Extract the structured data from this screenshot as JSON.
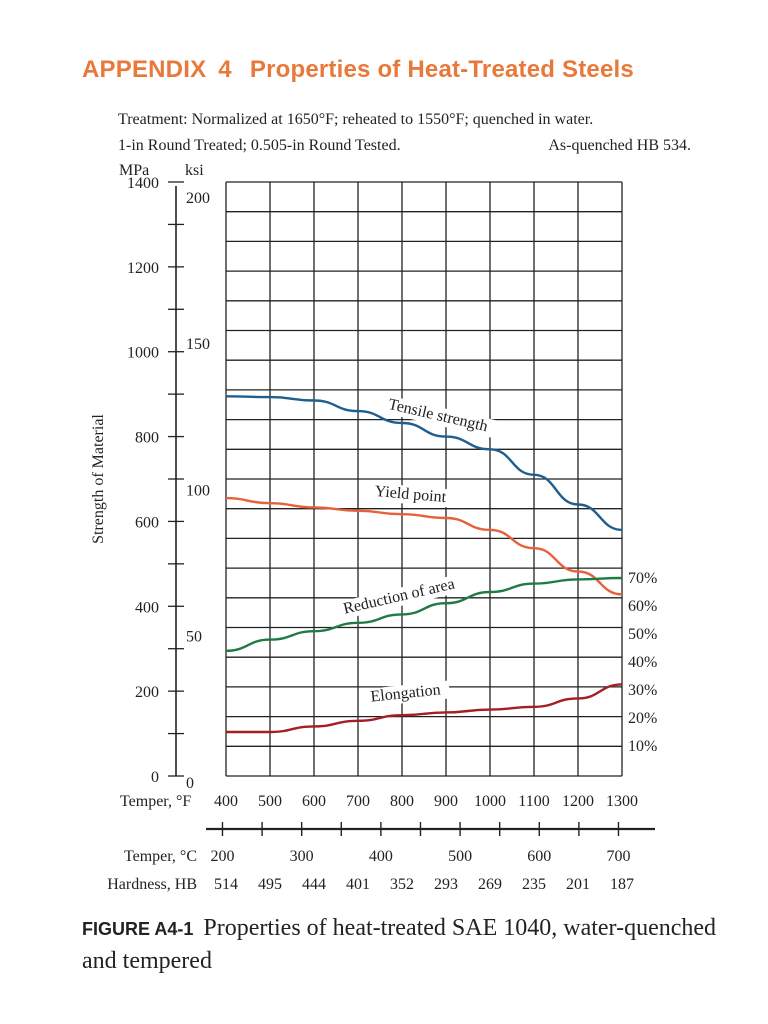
{
  "heading": {
    "label": "APPENDIX",
    "number": "4",
    "title": "Properties of Heat-Treated Steels"
  },
  "caption": {
    "label": "FIGURE A4-1",
    "text": "Properties of heat-treated SAE 1040, water-quenched and tempered"
  },
  "chart_data": {
    "type": "line",
    "notes": [
      "Treatment: Normalized at 1650°F; reheated to 1550°F; quenched in water.",
      "1-in Round Treated; 0.505-in Round Tested.",
      "As-quenched HB 534."
    ],
    "ylabel": "Strength of Material",
    "y_units": [
      "MPa",
      "ksi"
    ],
    "ylim_mpa": [
      0,
      1400
    ],
    "y_ticks_mpa": [
      "0",
      "200",
      "400",
      "600",
      "800",
      "1000",
      "1200",
      "1400"
    ],
    "y_ticks_ksi": [
      "0",
      "50",
      "100",
      "150",
      "200"
    ],
    "right_ticks_percent": [
      "10%",
      "20%",
      "30%",
      "40%",
      "50%",
      "60%",
      "70%"
    ],
    "x_title": "Temper, °F",
    "x_ticks_f": [
      "400",
      "500",
      "600",
      "700",
      "800",
      "900",
      "1000",
      "1100",
      "1200",
      "1300"
    ],
    "xlim_f": [
      400,
      1300
    ],
    "temper_c_title": "Temper, °C",
    "temper_c_ticks": [
      "200",
      "300",
      "400",
      "500",
      "600",
      "700"
    ],
    "hardness_title": "Hardness, HB",
    "hardness_values": [
      "514",
      "495",
      "444",
      "401",
      "352",
      "293",
      "269",
      "235",
      "201",
      "187"
    ],
    "grid": true,
    "series": [
      {
        "name": "Tensile strength",
        "axis": "MPa",
        "color": "#1f5f8f",
        "x": [
          400,
          500,
          600,
          700,
          800,
          900,
          1000,
          1100,
          1200,
          1300
        ],
        "y": [
          895,
          893,
          885,
          860,
          832,
          800,
          770,
          710,
          640,
          580
        ]
      },
      {
        "name": "Yield point",
        "axis": "MPa",
        "color": "#e8603a",
        "x": [
          400,
          500,
          600,
          700,
          800,
          900,
          1000,
          1100,
          1200,
          1300
        ],
        "y": [
          655,
          643,
          633,
          625,
          617,
          608,
          580,
          537,
          482,
          428
        ]
      },
      {
        "name": "Reduction of area",
        "axis": "percent",
        "color": "#1f7a45",
        "x": [
          400,
          500,
          600,
          700,
          800,
          900,
          1000,
          1100,
          1200,
          1300
        ],
        "y": [
          44,
          48,
          51,
          54,
          57,
          61,
          65,
          68,
          69.5,
          70
        ]
      },
      {
        "name": "Elongation",
        "axis": "percent",
        "color": "#a31f24",
        "x": [
          400,
          500,
          600,
          700,
          800,
          900,
          1000,
          1100,
          1200,
          1300
        ],
        "y": [
          15,
          15,
          17,
          19,
          21,
          22,
          23,
          24,
          27,
          32
        ]
      }
    ]
  }
}
